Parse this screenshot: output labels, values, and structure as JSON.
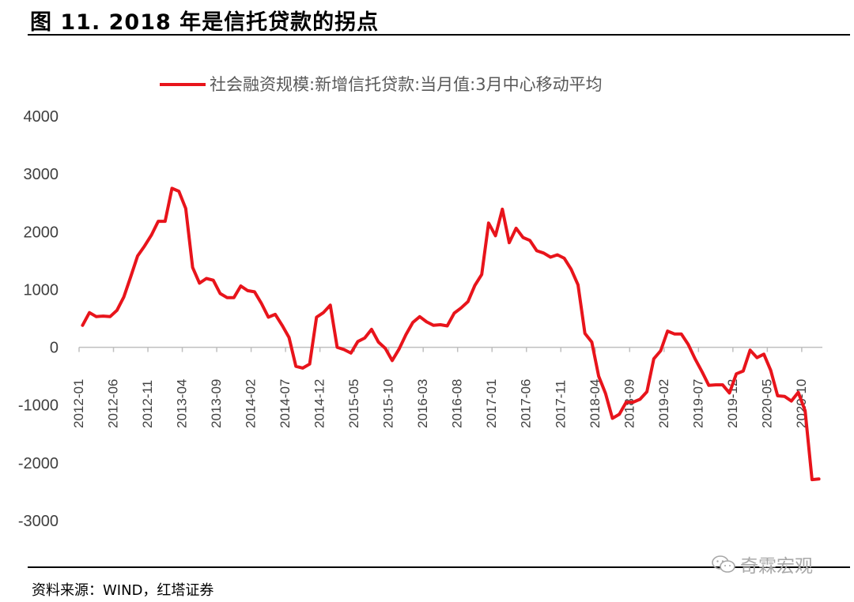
{
  "figure_title": "图 11. 2018 年是信托贷款的拐点",
  "source": "资料来源：WIND，红塔证券",
  "watermark": "奇霖宏观",
  "colors": {
    "series": "#e8141b",
    "axis": "#bfbfbf",
    "text": "#404040"
  },
  "icons": {
    "watermark": "wechat-icon"
  },
  "chart_data": {
    "type": "line",
    "title": "",
    "xlabel": "",
    "ylabel": "",
    "ylim": [
      -3000,
      4000
    ],
    "y_ticks": [
      "4000",
      "3000",
      "2000",
      "1000",
      "0",
      "-1000",
      "-2000",
      "-3000"
    ],
    "x_tick_labels": [
      "2012-01",
      "2012-06",
      "2012-11",
      "2013-04",
      "2013-09",
      "2014-02",
      "2014-07",
      "2014-12",
      "2015-05",
      "2015-10",
      "2016-03",
      "2016-08",
      "2017-01",
      "2017-06",
      "2017-11",
      "2018-04",
      "2018-09",
      "2019-02",
      "2019-07",
      "2019-12",
      "2020-05",
      "2020-10"
    ],
    "legend_position": "top",
    "grid": false,
    "series": [
      {
        "name": "社会融资规模:新增信托贷款:当月值:3月中心移动平均",
        "start": "2012-01",
        "values": [
          380,
          600,
          530,
          540,
          530,
          640,
          870,
          1220,
          1580,
          1750,
          1940,
          2180,
          2180,
          2750,
          2700,
          2400,
          1380,
          1110,
          1190,
          1160,
          930,
          860,
          860,
          1060,
          980,
          960,
          760,
          520,
          570,
          380,
          170,
          -330,
          -360,
          -290,
          520,
          600,
          730,
          0,
          -40,
          -100,
          100,
          160,
          310,
          90,
          -20,
          -230,
          -30,
          220,
          430,
          530,
          440,
          380,
          390,
          370,
          590,
          680,
          790,
          1070,
          1260,
          2150,
          1930,
          2390,
          1810,
          2060,
          1900,
          1850,
          1670,
          1630,
          1560,
          1600,
          1540,
          1350,
          1080,
          240,
          90,
          -500,
          -800,
          -1230,
          -1160,
          -950,
          -950,
          -900,
          -770,
          -200,
          -60,
          280,
          230,
          230,
          50,
          -200,
          -420,
          -660,
          -650,
          -650,
          -790,
          -460,
          -410,
          -50,
          -180,
          -120,
          -400,
          -840,
          -850,
          -930,
          -780,
          -1100,
          -2290,
          -2280
        ]
      }
    ]
  }
}
